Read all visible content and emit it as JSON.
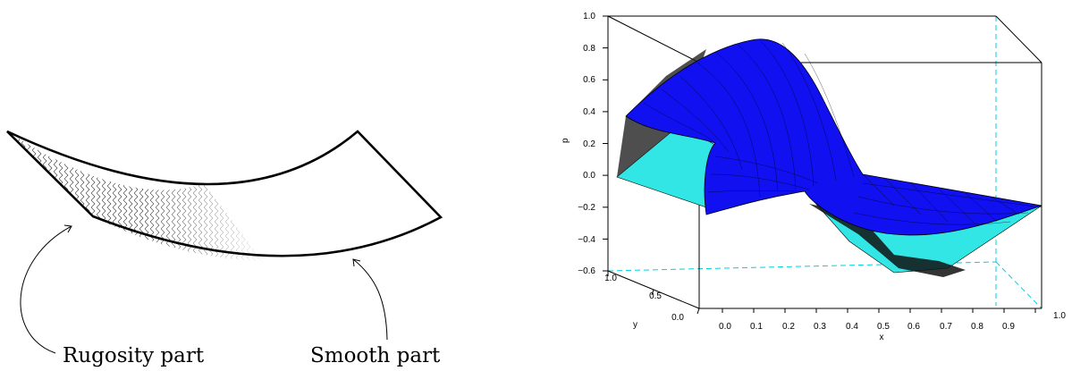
{
  "left_diagram": {
    "label_rugosity": "Rugosity part",
    "label_smooth": "Smooth part"
  },
  "surface_plot": {
    "z_label": "p",
    "x_label": "x",
    "y_label": "y",
    "z_ticks": [
      "1.0",
      "0.8",
      "0.6",
      "0.4",
      "0.2",
      "0.0",
      "−0.2",
      "−0.4",
      "−0.6"
    ],
    "x_ticks": [
      "0.0",
      "0.1",
      "0.2",
      "0.3",
      "0.4",
      "0.5",
      "0.6",
      "0.7",
      "0.8",
      "0.9",
      "1.0"
    ],
    "y_ticks": [
      "1.0",
      "0.5",
      "0.0"
    ],
    "colors": {
      "top_face": "#1010f0",
      "under_face": "#33e6e6",
      "mesh": "#000000",
      "box_hidden": "#00d0e0"
    }
  }
}
